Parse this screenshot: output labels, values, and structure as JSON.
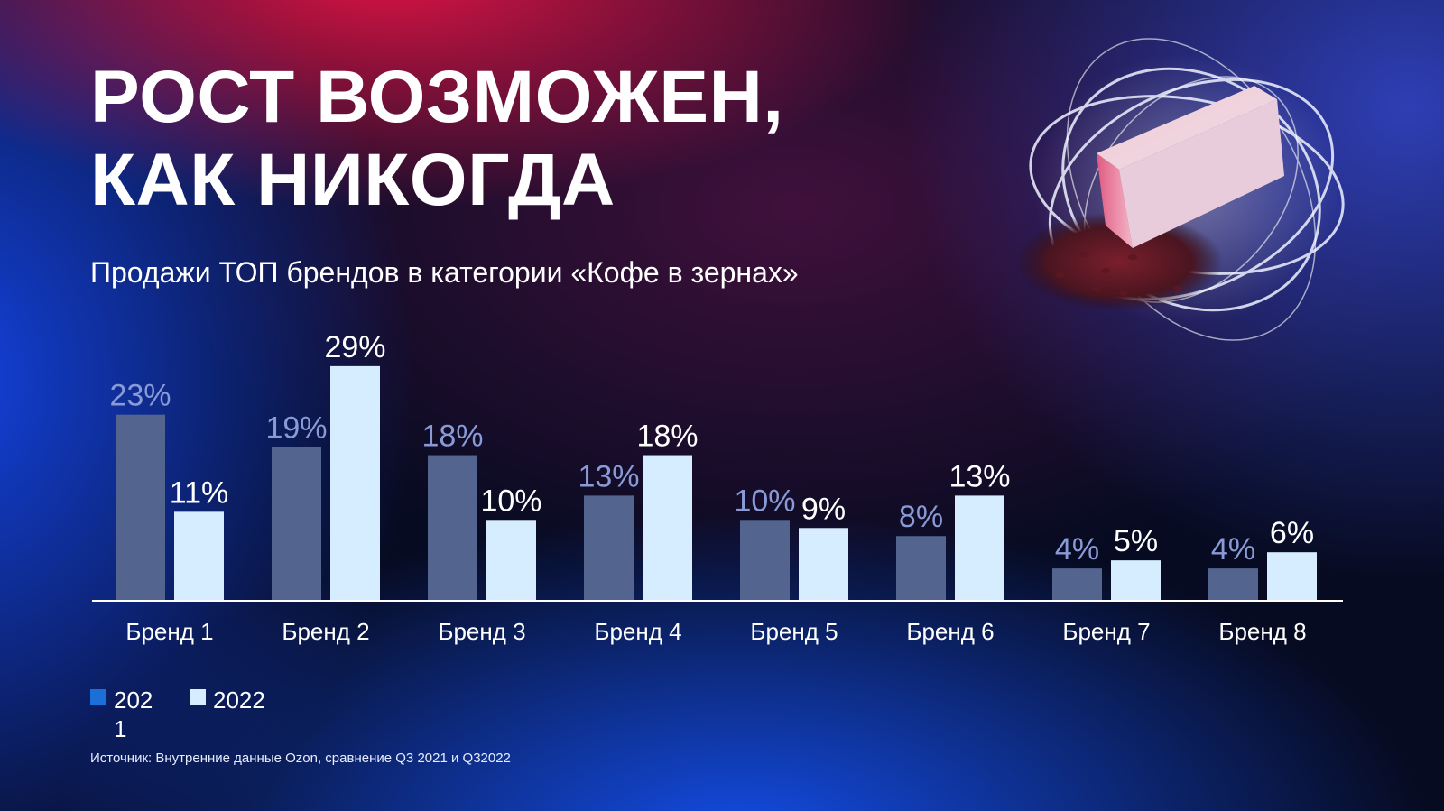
{
  "title_lines": [
    "РОСТ ВОЗМОЖЕН,",
    "КАК НИКОГДА"
  ],
  "subtitle": "Продажи ТОП брендов в категории «Кофе в зернах»",
  "legend": [
    {
      "label": "2021",
      "color": "#1c6fd6"
    },
    {
      "label": "2022",
      "color": "#d6ecff"
    }
  ],
  "source": "Источник: Внутренние данные Ozon, сравнение Q3 2021 и Q32022",
  "colors": {
    "bar_2021": "#53648f",
    "bar_2022": "#d6ecff",
    "label_2021": "#8a9ad6",
    "label_2022": "#ffffff",
    "axis": "#ffffff",
    "category_text": "#ffffff"
  },
  "chart_data": {
    "type": "bar",
    "categories": [
      "Бренд 1",
      "Бренд 2",
      "Бренд 3",
      "Бренд 4",
      "Бренд 5",
      "Бренд 6",
      "Бренд 7",
      "Бренд 8"
    ],
    "series": [
      {
        "name": "2021",
        "values": [
          23,
          19,
          18,
          13,
          10,
          8,
          4,
          4
        ],
        "labels": [
          "23%",
          "19%",
          "18%",
          "13%",
          "10%",
          "8%",
          "4%",
          "4%"
        ]
      },
      {
        "name": "2022",
        "values": [
          11,
          29,
          10,
          18,
          9,
          13,
          5,
          6
        ],
        "labels": [
          "11%",
          "29%",
          "10%",
          "18%",
          "9%",
          "13%",
          "5%",
          "6%"
        ]
      }
    ],
    "title": "Продажи ТОП брендов в категории «Кофе в зернах»",
    "xlabel": "",
    "ylabel": "",
    "ylim": [
      0,
      29
    ],
    "grid": false,
    "legend_position": "bottom-left"
  }
}
